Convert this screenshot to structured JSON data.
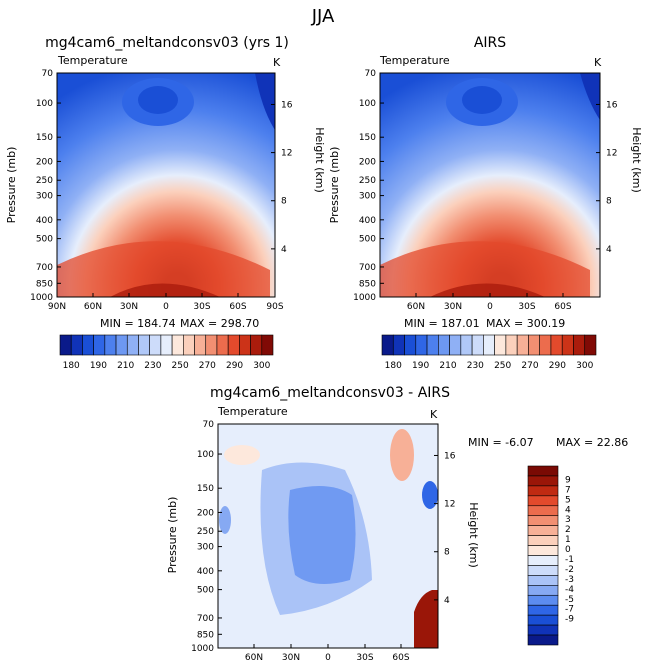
{
  "figure_title": "JJA",
  "colors": {
    "temperature_levels": [
      "#0a1a8a",
      "#1033b8",
      "#1a4fd6",
      "#2f66e6",
      "#4d80ee",
      "#6d98f2",
      "#8fb0f5",
      "#b0c8f8",
      "#cddcfa",
      "#e6eefc",
      "#fde8dc",
      "#fbd0bc",
      "#f7b097",
      "#f28f72",
      "#ec6c4d",
      "#e34a2c",
      "#cc3318",
      "#aa1c0c",
      "#800a05"
    ],
    "difference_levels": [
      "#0a1a8a",
      "#1033b8",
      "#1a4fd6",
      "#2f66e6",
      "#5c8cf0",
      "#86a9f3",
      "#aac3f7",
      "#cddcfa",
      "#e6eefc",
      "#fde8dc",
      "#fbd0bc",
      "#f7b097",
      "#f28f72",
      "#ec6c4d",
      "#e34a2c",
      "#c02a12",
      "#9a1608",
      "#7a0a04"
    ]
  },
  "chart_data": [
    {
      "type": "heatmap",
      "title": "mg4cam6_meltandconsv03 (yrs 1)",
      "subtitle_left": "Temperature",
      "subtitle_right": "K",
      "xlabel": "",
      "ylabel": "Pressure (mb)",
      "ylabel_right": "Height (km)",
      "x_ticks": [
        "90N",
        "60N",
        "30N",
        "0",
        "30S",
        "60S",
        "90S"
      ],
      "y_ticks": [
        "70",
        "100",
        "150",
        "200",
        "250",
        "300",
        "400",
        "500",
        "700",
        "850",
        "1000"
      ],
      "height_ticks": [
        "16",
        "12",
        "8",
        "4"
      ],
      "ylim": [
        70,
        1000
      ],
      "min_label": "MIN = 184.74",
      "max_label": "MAX = 298.70",
      "colorbar_ticks": [
        "180",
        "190",
        "210",
        "230",
        "250",
        "270",
        "290",
        "300"
      ],
      "fill": "temperature"
    },
    {
      "type": "heatmap",
      "title": "AIRS",
      "subtitle_left": "Temperature",
      "subtitle_right": "K",
      "xlabel": "",
      "ylabel": "Pressure (mb)",
      "ylabel_right": "Height (km)",
      "x_ticks": [
        "60N",
        "30N",
        "0",
        "30S",
        "60S"
      ],
      "y_ticks": [
        "70",
        "100",
        "150",
        "200",
        "250",
        "300",
        "400",
        "500",
        "700",
        "850",
        "1000"
      ],
      "height_ticks": [
        "16",
        "12",
        "8",
        "4"
      ],
      "ylim": [
        70,
        1000
      ],
      "min_label": "MIN = 187.01",
      "max_label": "MAX = 300.19",
      "colorbar_ticks": [
        "180",
        "190",
        "210",
        "230",
        "250",
        "270",
        "290",
        "300"
      ],
      "fill": "temperature"
    },
    {
      "type": "heatmap",
      "title": "mg4cam6_meltandconsv03 - AIRS",
      "subtitle_left": "Temperature",
      "subtitle_right": "K",
      "xlabel": "",
      "ylabel": "Pressure (mb)",
      "ylabel_right": "Height (km)",
      "x_ticks": [
        "60N",
        "30N",
        "0",
        "30S",
        "60S"
      ],
      "y_ticks": [
        "70",
        "100",
        "150",
        "200",
        "250",
        "300",
        "400",
        "500",
        "700",
        "850",
        "1000"
      ],
      "height_ticks": [
        "16",
        "12",
        "8",
        "4"
      ],
      "ylim": [
        70,
        1000
      ],
      "min_label": "MIN =   -6.07",
      "max_label": "MAX =   22.86",
      "colorbar_ticks": [
        "9",
        "7",
        "5",
        "4",
        "3",
        "2",
        "1",
        "0",
        "-1",
        "-2",
        "-3",
        "-4",
        "-5",
        "-7",
        "-9"
      ],
      "fill": "difference"
    }
  ]
}
